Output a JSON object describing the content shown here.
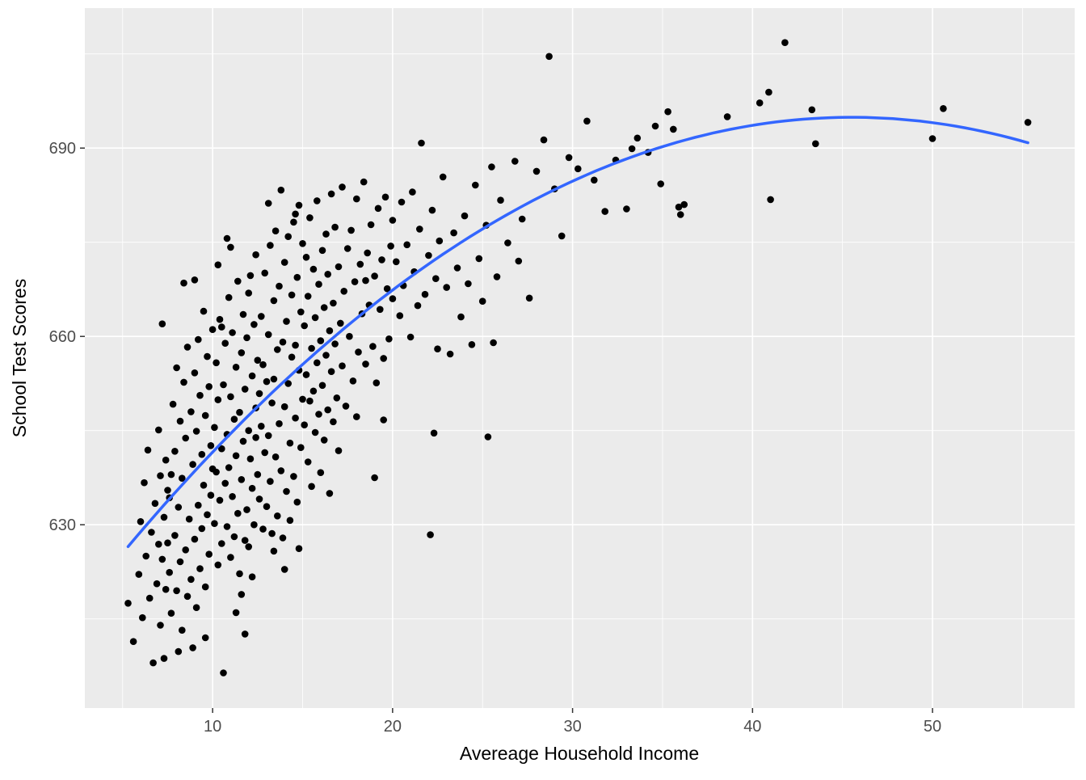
{
  "figure": {
    "background": "#FFFFFF",
    "panel_background": "#EBEBEB",
    "grid_color": "#FFFFFF",
    "point_color": "#000000",
    "smooth_line_color": "#3366FF",
    "tick_label_color": "#4D4D4D",
    "axis_title_color": "#000000"
  },
  "chart_data": {
    "type": "scatter",
    "title": "",
    "xlabel": "Avereage Household Income",
    "ylabel": "School Test Scores",
    "xlim": [
      2.9,
      57.9
    ],
    "ylim": [
      600.8,
      712.3
    ],
    "x_ticks": [
      10,
      20,
      30,
      40,
      50
    ],
    "y_ticks": [
      630,
      660,
      690
    ],
    "x_minor_ticks": [
      5,
      15,
      25,
      35,
      45,
      55
    ],
    "y_minor_ticks": [
      615,
      645,
      675,
      705
    ],
    "grid": true,
    "legend": "none",
    "smooth_line": {
      "kind": "quadratic",
      "intercept": 607.3,
      "linear": 3.85,
      "quadratic": -0.0423,
      "x_range": [
        5.3,
        55.3
      ],
      "color": "#3366FF"
    },
    "points": [
      [
        5.3,
        617.5
      ],
      [
        5.6,
        611.4
      ],
      [
        5.9,
        622.1
      ],
      [
        6.0,
        630.5
      ],
      [
        6.1,
        615.2
      ],
      [
        6.2,
        636.7
      ],
      [
        6.3,
        625.0
      ],
      [
        6.4,
        641.9
      ],
      [
        6.5,
        618.3
      ],
      [
        6.6,
        628.8
      ],
      [
        6.7,
        608.0
      ],
      [
        6.8,
        633.4
      ],
      [
        6.9,
        620.6
      ],
      [
        7.0,
        645.1
      ],
      [
        7.0,
        626.9
      ],
      [
        7.1,
        614.0
      ],
      [
        7.1,
        637.8
      ],
      [
        7.2,
        662.0
      ],
      [
        7.2,
        624.5
      ],
      [
        7.3,
        608.7
      ],
      [
        7.3,
        631.2
      ],
      [
        7.4,
        640.3
      ],
      [
        7.4,
        619.7
      ],
      [
        7.5,
        635.5
      ],
      [
        7.5,
        627.1
      ],
      [
        7.6,
        622.4
      ],
      [
        7.7,
        638.0
      ],
      [
        7.7,
        615.9
      ],
      [
        7.8,
        649.2
      ],
      [
        7.9,
        628.3
      ],
      [
        7.9,
        641.7
      ],
      [
        8.0,
        619.5
      ],
      [
        8.0,
        655.0
      ],
      [
        8.1,
        632.8
      ],
      [
        8.2,
        624.1
      ],
      [
        8.2,
        646.5
      ],
      [
        8.3,
        613.2
      ],
      [
        8.3,
        637.4
      ],
      [
        8.4,
        652.7
      ],
      [
        8.5,
        626.0
      ],
      [
        8.5,
        643.8
      ],
      [
        8.6,
        618.6
      ],
      [
        8.6,
        658.3
      ],
      [
        8.7,
        630.9
      ],
      [
        8.8,
        621.3
      ],
      [
        8.8,
        648.0
      ],
      [
        8.9,
        610.4
      ],
      [
        8.9,
        639.6
      ],
      [
        9.0,
        654.2
      ],
      [
        9.0,
        627.7
      ],
      [
        9.1,
        644.9
      ],
      [
        9.1,
        616.8
      ],
      [
        9.2,
        659.5
      ],
      [
        9.2,
        633.1
      ],
      [
        9.3,
        623.0
      ],
      [
        9.3,
        650.6
      ],
      [
        9.4,
        641.2
      ],
      [
        9.4,
        629.4
      ],
      [
        9.5,
        664.0
      ],
      [
        9.5,
        636.3
      ],
      [
        9.6,
        620.1
      ],
      [
        9.6,
        647.4
      ],
      [
        9.7,
        656.8
      ],
      [
        9.7,
        631.6
      ],
      [
        9.8,
        625.3
      ],
      [
        9.8,
        652.0
      ],
      [
        9.9,
        642.6
      ],
      [
        9.9,
        634.7
      ],
      [
        10.0,
        661.1
      ],
      [
        10.0,
        638.9
      ],
      [
        8.4,
        668.5
      ],
      [
        9.0,
        669.0
      ],
      [
        9.6,
        612.0
      ],
      [
        8.1,
        609.8
      ],
      [
        7.6,
        634.3
      ],
      [
        10.1,
        645.5
      ],
      [
        10.1,
        630.2
      ],
      [
        10.2,
        655.8
      ],
      [
        10.2,
        638.4
      ],
      [
        10.3,
        623.6
      ],
      [
        10.3,
        649.9
      ],
      [
        10.4,
        662.7
      ],
      [
        10.4,
        633.9
      ],
      [
        10.5,
        642.1
      ],
      [
        10.5,
        627.0
      ],
      [
        10.6,
        606.4
      ],
      [
        10.6,
        652.3
      ],
      [
        10.7,
        636.6
      ],
      [
        10.7,
        658.9
      ],
      [
        10.8,
        644.4
      ],
      [
        10.8,
        629.7
      ],
      [
        10.9,
        666.2
      ],
      [
        10.9,
        639.1
      ],
      [
        11.0,
        624.8
      ],
      [
        11.0,
        650.4
      ],
      [
        11.1,
        660.6
      ],
      [
        11.1,
        634.5
      ],
      [
        11.2,
        646.8
      ],
      [
        11.2,
        628.1
      ],
      [
        11.3,
        655.1
      ],
      [
        11.3,
        641.0
      ],
      [
        11.4,
        668.8
      ],
      [
        11.4,
        631.8
      ],
      [
        11.5,
        647.9
      ],
      [
        11.5,
        622.2
      ],
      [
        11.6,
        657.4
      ],
      [
        11.6,
        637.2
      ],
      [
        11.7,
        663.5
      ],
      [
        11.7,
        643.3
      ],
      [
        11.8,
        612.6
      ],
      [
        11.8,
        651.6
      ],
      [
        11.9,
        632.4
      ],
      [
        11.9,
        659.8
      ],
      [
        12.0,
        645.0
      ],
      [
        12.0,
        626.5
      ],
      [
        12.1,
        669.7
      ],
      [
        12.1,
        640.5
      ],
      [
        12.2,
        653.7
      ],
      [
        12.2,
        635.8
      ],
      [
        12.3,
        661.9
      ],
      [
        12.3,
        630.0
      ],
      [
        12.4,
        648.6
      ],
      [
        12.4,
        673.0
      ],
      [
        12.5,
        638.0
      ],
      [
        12.5,
        656.2
      ],
      [
        10.3,
        671.4
      ],
      [
        11.0,
        674.2
      ],
      [
        11.6,
        618.9
      ],
      [
        12.2,
        621.7
      ],
      [
        10.8,
        675.6
      ],
      [
        11.3,
        616.0
      ],
      [
        12.0,
        666.9
      ],
      [
        10.5,
        661.5
      ],
      [
        11.8,
        627.5
      ],
      [
        12.4,
        643.9
      ],
      [
        12.6,
        650.9
      ],
      [
        12.6,
        634.1
      ],
      [
        12.7,
        663.2
      ],
      [
        12.7,
        645.7
      ],
      [
        12.8,
        629.3
      ],
      [
        12.8,
        655.5
      ],
      [
        12.9,
        670.1
      ],
      [
        12.9,
        641.5
      ],
      [
        13.0,
        652.8
      ],
      [
        13.0,
        632.9
      ],
      [
        13.1,
        660.3
      ],
      [
        13.1,
        644.2
      ],
      [
        13.2,
        674.5
      ],
      [
        13.2,
        636.9
      ],
      [
        13.3,
        649.4
      ],
      [
        13.3,
        628.6
      ],
      [
        13.4,
        665.7
      ],
      [
        13.4,
        653.2
      ],
      [
        13.5,
        640.8
      ],
      [
        13.5,
        676.8
      ],
      [
        13.6,
        657.9
      ],
      [
        13.6,
        631.4
      ],
      [
        13.7,
        668.0
      ],
      [
        13.7,
        646.1
      ],
      [
        13.8,
        683.3
      ],
      [
        13.8,
        638.6
      ],
      [
        13.9,
        659.1
      ],
      [
        13.9,
        627.9
      ],
      [
        14.0,
        671.8
      ],
      [
        14.0,
        648.8
      ],
      [
        14.1,
        662.4
      ],
      [
        14.1,
        635.3
      ],
      [
        14.2,
        675.9
      ],
      [
        14.2,
        652.5
      ],
      [
        14.3,
        643.0
      ],
      [
        14.3,
        630.7
      ],
      [
        14.4,
        666.6
      ],
      [
        14.4,
        656.7
      ],
      [
        14.5,
        678.2
      ],
      [
        14.5,
        637.7
      ],
      [
        14.6,
        658.6
      ],
      [
        14.6,
        647.0
      ],
      [
        14.7,
        669.4
      ],
      [
        14.7,
        633.6
      ],
      [
        14.8,
        654.6
      ],
      [
        14.8,
        680.9
      ],
      [
        14.9,
        642.3
      ],
      [
        14.9,
        663.9
      ],
      [
        15.0,
        650.0
      ],
      [
        15.0,
        674.8
      ],
      [
        13.4,
        625.8
      ],
      [
        14.0,
        622.9
      ],
      [
        14.6,
        679.5
      ],
      [
        13.1,
        681.2
      ],
      [
        14.8,
        626.2
      ],
      [
        15.1,
        661.7
      ],
      [
        15.1,
        645.9
      ],
      [
        15.2,
        672.6
      ],
      [
        15.2,
        653.9
      ],
      [
        15.3,
        640.0
      ],
      [
        15.3,
        666.4
      ],
      [
        15.4,
        678.9
      ],
      [
        15.4,
        649.7
      ],
      [
        15.5,
        658.1
      ],
      [
        15.5,
        636.1
      ],
      [
        15.6,
        670.7
      ],
      [
        15.6,
        651.3
      ],
      [
        15.7,
        663.0
      ],
      [
        15.7,
        644.7
      ],
      [
        15.8,
        681.6
      ],
      [
        15.8,
        655.8
      ],
      [
        15.9,
        647.6
      ],
      [
        15.9,
        668.3
      ],
      [
        16.0,
        659.3
      ],
      [
        16.0,
        638.3
      ],
      [
        16.1,
        673.7
      ],
      [
        16.1,
        652.2
      ],
      [
        16.2,
        664.6
      ],
      [
        16.2,
        643.5
      ],
      [
        16.3,
        676.3
      ],
      [
        16.3,
        657.0
      ],
      [
        16.4,
        648.3
      ],
      [
        16.4,
        669.9
      ],
      [
        16.5,
        660.9
      ],
      [
        16.5,
        635.0
      ],
      [
        16.6,
        682.7
      ],
      [
        16.6,
        654.4
      ],
      [
        16.7,
        665.3
      ],
      [
        16.7,
        646.4
      ],
      [
        16.8,
        677.4
      ],
      [
        16.8,
        658.8
      ],
      [
        16.9,
        650.2
      ],
      [
        17.0,
        671.1
      ],
      [
        17.0,
        641.8
      ],
      [
        17.1,
        662.1
      ],
      [
        17.2,
        683.8
      ],
      [
        17.2,
        655.3
      ],
      [
        17.3,
        667.2
      ],
      [
        17.4,
        648.9
      ],
      [
        17.5,
        674.0
      ],
      [
        17.6,
        660.0
      ],
      [
        17.7,
        676.9
      ],
      [
        17.8,
        652.9
      ],
      [
        17.9,
        668.7
      ],
      [
        18.0,
        681.9
      ],
      [
        18.1,
        657.5
      ],
      [
        18.2,
        671.5
      ],
      [
        18.3,
        663.6
      ],
      [
        18.4,
        684.6
      ],
      [
        18.5,
        655.6
      ],
      [
        18.6,
        673.3
      ],
      [
        18.7,
        665.0
      ],
      [
        18.8,
        677.8
      ],
      [
        18.9,
        658.4
      ],
      [
        19.0,
        669.6
      ],
      [
        19.1,
        652.6
      ],
      [
        19.2,
        680.4
      ],
      [
        19.3,
        664.3
      ],
      [
        19.4,
        672.2
      ],
      [
        19.5,
        656.5
      ],
      [
        19.6,
        682.2
      ],
      [
        19.7,
        667.6
      ],
      [
        19.8,
        659.6
      ],
      [
        19.9,
        674.4
      ],
      [
        20.0,
        666.0
      ],
      [
        18.0,
        647.2
      ],
      [
        19.0,
        637.5
      ],
      [
        19.5,
        646.7
      ],
      [
        18.5,
        668.9
      ],
      [
        20.0,
        678.5
      ],
      [
        20.2,
        671.9
      ],
      [
        20.4,
        663.3
      ],
      [
        20.5,
        681.4
      ],
      [
        20.6,
        668.1
      ],
      [
        20.8,
        674.6
      ],
      [
        21.0,
        659.9
      ],
      [
        21.1,
        683.0
      ],
      [
        21.2,
        670.3
      ],
      [
        21.4,
        664.9
      ],
      [
        21.5,
        677.1
      ],
      [
        21.6,
        690.8
      ],
      [
        21.8,
        666.7
      ],
      [
        22.0,
        672.9
      ],
      [
        22.1,
        628.4
      ],
      [
        22.2,
        680.1
      ],
      [
        22.4,
        669.2
      ],
      [
        22.5,
        658.0
      ],
      [
        22.6,
        675.2
      ],
      [
        22.8,
        685.4
      ],
      [
        23.0,
        667.8
      ],
      [
        23.2,
        657.2
      ],
      [
        23.4,
        676.5
      ],
      [
        23.6,
        670.9
      ],
      [
        23.8,
        663.1
      ],
      [
        24.0,
        679.2
      ],
      [
        24.2,
        668.4
      ],
      [
        24.4,
        658.7
      ],
      [
        24.6,
        684.1
      ],
      [
        24.8,
        672.4
      ],
      [
        25.0,
        665.6
      ],
      [
        22.3,
        644.6
      ],
      [
        25.3,
        644.0
      ],
      [
        25.2,
        677.7
      ],
      [
        25.5,
        687.0
      ],
      [
        25.8,
        669.5
      ],
      [
        26.0,
        681.7
      ],
      [
        26.4,
        674.9
      ],
      [
        26.8,
        687.9
      ],
      [
        27.2,
        678.7
      ],
      [
        27.6,
        666.1
      ],
      [
        28.0,
        686.3
      ],
      [
        28.4,
        691.3
      ],
      [
        28.7,
        704.6
      ],
      [
        29.0,
        683.5
      ],
      [
        29.4,
        676.0
      ],
      [
        29.8,
        688.5
      ],
      [
        25.6,
        659.0
      ],
      [
        27.0,
        672.0
      ],
      [
        30.3,
        686.7
      ],
      [
        30.8,
        694.3
      ],
      [
        31.2,
        684.9
      ],
      [
        31.8,
        679.9
      ],
      [
        32.4,
        688.1
      ],
      [
        33.0,
        680.3
      ],
      [
        33.6,
        691.6
      ],
      [
        34.2,
        689.3
      ],
      [
        34.6,
        693.5
      ],
      [
        34.9,
        684.3
      ],
      [
        33.3,
        689.9
      ],
      [
        35.3,
        695.8
      ],
      [
        35.6,
        693.0
      ],
      [
        35.9,
        680.6
      ],
      [
        36.0,
        679.4
      ],
      [
        38.6,
        695.0
      ],
      [
        40.4,
        697.2
      ],
      [
        40.9,
        698.9
      ],
      [
        41.0,
        681.8
      ],
      [
        41.8,
        706.8
      ],
      [
        43.3,
        696.1
      ],
      [
        43.5,
        690.7
      ],
      [
        36.2,
        681.0
      ],
      [
        50.0,
        691.5
      ],
      [
        50.6,
        696.3
      ],
      [
        55.3,
        694.1
      ]
    ]
  }
}
